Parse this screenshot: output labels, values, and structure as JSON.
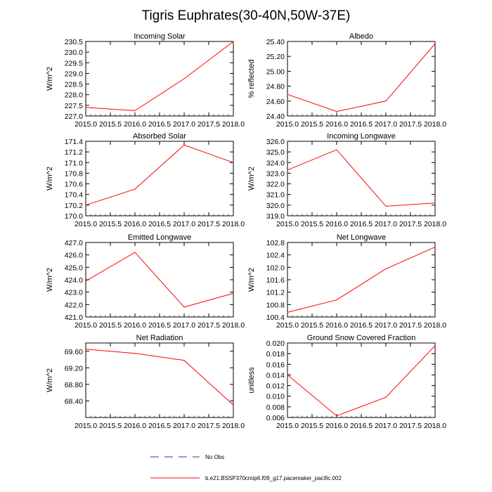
{
  "title": "Tigris Euphrates(30-40N,50W-37E)",
  "colors": {
    "model": "#ff0000",
    "obs": "#3333aa",
    "axis": "#000000"
  },
  "legend": {
    "obs_label": "No Obs",
    "model_label": "b.e21.BSSP370cmip6.f09_g17.pacemaker_pacific.002"
  },
  "chart_data": [
    {
      "type": "line",
      "title": "Incoming Solar",
      "ylabel": "W/m^2",
      "x": [
        2015.0,
        2016.0,
        2017.0,
        2018.0
      ],
      "xlim": [
        2015.0,
        2018.0
      ],
      "xticks": [
        "2015.0",
        "2015.5",
        "2016.0",
        "2016.5",
        "2017.0",
        "2017.5",
        "2018.0"
      ],
      "ylim": [
        227.0,
        230.5
      ],
      "yticks": [
        "227.0",
        "227.5",
        "228.0",
        "228.5",
        "229.0",
        "229.5",
        "230.0",
        "230.5"
      ],
      "series": [
        {
          "name": "b.e21.BSSP370cmip6.f09_g17.pacemaker_pacific.002",
          "values": [
            227.4,
            227.25,
            228.75,
            230.5
          ]
        }
      ]
    },
    {
      "type": "line",
      "title": "Albedo",
      "ylabel": "% reflected",
      "x": [
        2015.0,
        2016.0,
        2017.0,
        2018.0
      ],
      "xlim": [
        2015.0,
        2018.0
      ],
      "xticks": [
        "2015.0",
        "2015.5",
        "2016.0",
        "2016.5",
        "2017.0",
        "2017.5",
        "2018.0"
      ],
      "ylim": [
        24.4,
        25.4
      ],
      "yticks": [
        "24.40",
        "24.60",
        "24.80",
        "25.00",
        "25.20",
        "25.40"
      ],
      "series": [
        {
          "name": "b.e21.BSSP370cmip6.f09_g17.pacemaker_pacific.002",
          "values": [
            24.69,
            24.46,
            24.6,
            25.37
          ]
        }
      ]
    },
    {
      "type": "line",
      "title": "Absorbed Solar",
      "ylabel": "W/m^2",
      "x": [
        2015.0,
        2016.0,
        2017.0,
        2018.0
      ],
      "xlim": [
        2015.0,
        2018.0
      ],
      "xticks": [
        "2015.0",
        "2015.5",
        "2016.0",
        "2016.5",
        "2017.0",
        "2017.5",
        "2018.0"
      ],
      "ylim": [
        170.0,
        171.4
      ],
      "yticks": [
        "170.0",
        "170.2",
        "170.4",
        "170.6",
        "170.8",
        "171.0",
        "171.2",
        "171.4"
      ],
      "series": [
        {
          "name": "b.e21.BSSP370cmip6.f09_g17.pacemaker_pacific.002",
          "values": [
            170.2,
            170.5,
            171.33,
            171.0
          ]
        }
      ]
    },
    {
      "type": "line",
      "title": "Incoming Longwave",
      "ylabel": "W/m^2",
      "x": [
        2015.0,
        2016.0,
        2017.0,
        2018.0
      ],
      "xlim": [
        2015.0,
        2018.0
      ],
      "xticks": [
        "2015.0",
        "2015.5",
        "2016.0",
        "2016.5",
        "2017.0",
        "2017.5",
        "2018.0"
      ],
      "ylim": [
        319.0,
        326.0
      ],
      "yticks": [
        "319.0",
        "320.0",
        "321.0",
        "322.0",
        "323.0",
        "324.0",
        "325.0",
        "326.0"
      ],
      "series": [
        {
          "name": "b.e21.BSSP370cmip6.f09_g17.pacemaker_pacific.002",
          "values": [
            323.3,
            325.2,
            319.9,
            320.2
          ]
        }
      ]
    },
    {
      "type": "line",
      "title": "Emitted Longwave",
      "ylabel": "W/m^2",
      "x": [
        2015.0,
        2016.0,
        2017.0,
        2018.0
      ],
      "xlim": [
        2015.0,
        2018.0
      ],
      "xticks": [
        "2015.0",
        "2015.5",
        "2016.0",
        "2016.5",
        "2017.0",
        "2017.5",
        "2018.0"
      ],
      "ylim": [
        421.0,
        427.0
      ],
      "yticks": [
        "421.0",
        "422.0",
        "423.0",
        "424.0",
        "425.0",
        "426.0",
        "427.0"
      ],
      "series": [
        {
          "name": "b.e21.BSSP370cmip6.f09_g17.pacemaker_pacific.002",
          "values": [
            423.9,
            426.2,
            421.8,
            422.9
          ]
        }
      ]
    },
    {
      "type": "line",
      "title": "Net Longwave",
      "ylabel": "W/m^2",
      "x": [
        2015.0,
        2016.0,
        2017.0,
        2018.0
      ],
      "xlim": [
        2015.0,
        2018.0
      ],
      "xticks": [
        "2015.0",
        "2015.5",
        "2016.0",
        "2016.5",
        "2017.0",
        "2017.5",
        "2018.0"
      ],
      "ylim": [
        100.4,
        102.8
      ],
      "yticks": [
        "100.4",
        "100.8",
        "101.2",
        "101.6",
        "102.0",
        "102.4",
        "102.8"
      ],
      "series": [
        {
          "name": "b.e21.BSSP370cmip6.f09_g17.pacemaker_pacific.002",
          "values": [
            100.55,
            100.95,
            101.95,
            102.65
          ]
        }
      ]
    },
    {
      "type": "line",
      "title": "Net Radiation",
      "ylabel": "W/m^2",
      "x": [
        2015.0,
        2016.0,
        2017.0,
        2018.0
      ],
      "xlim": [
        2015.0,
        2018.0
      ],
      "xticks": [
        "2015.0",
        "2015.5",
        "2016.0",
        "2016.5",
        "2017.0",
        "2017.5",
        "2018.0"
      ],
      "ylim": [
        68.0,
        69.8
      ],
      "yticks": [
        "68.40",
        "68.80",
        "69.20",
        "69.60"
      ],
      "series": [
        {
          "name": "b.e21.BSSP370cmip6.f09_g17.pacemaker_pacific.002",
          "values": [
            69.65,
            69.55,
            69.38,
            68.3
          ]
        }
      ]
    },
    {
      "type": "line",
      "title": "Ground Snow Covered Fraction",
      "ylabel": "unitless",
      "x": [
        2015.0,
        2016.0,
        2017.0,
        2018.0
      ],
      "xlim": [
        2015.0,
        2018.0
      ],
      "xticks": [
        "2015.0",
        "2015.5",
        "2016.0",
        "2016.5",
        "2017.0",
        "2017.5",
        "2018.0"
      ],
      "ylim": [
        0.006,
        0.02
      ],
      "yticks": [
        "0.006",
        "0.008",
        "0.010",
        "0.012",
        "0.014",
        "0.016",
        "0.018",
        "0.020"
      ],
      "series": [
        {
          "name": "b.e21.BSSP370cmip6.f09_g17.pacemaker_pacific.002",
          "values": [
            0.014,
            0.0063,
            0.0098,
            0.0195
          ]
        }
      ]
    }
  ]
}
